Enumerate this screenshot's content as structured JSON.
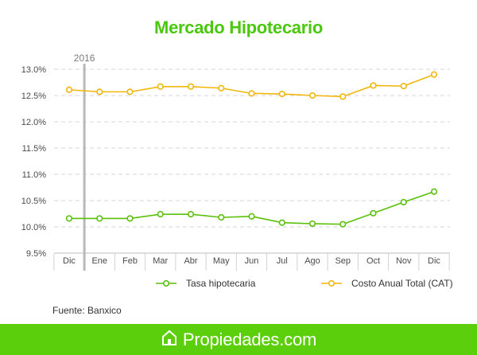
{
  "colors": {
    "title": "#49c80d",
    "series_tasa": "#5ac00a",
    "series_cat": "#f2b60d",
    "footer_bg": "#5ccf0c",
    "grid": "#d6d6d6",
    "year_marker": "#b9b9b9"
  },
  "chart_data": {
    "type": "line",
    "title": "Mercado Hipotecario",
    "categories": [
      "Dic",
      "Ene",
      "Feb",
      "Mar",
      "Abr",
      "May",
      "Jun",
      "Jul",
      "Ago",
      "Sep",
      "Oct",
      "Nov",
      "Dic"
    ],
    "y_tick_labels": [
      "9.5%",
      "10.0%",
      "10.5%",
      "11.0%",
      "11.5%",
      "12.0%",
      "12.5%",
      "13.0%"
    ],
    "ylim": [
      9.5,
      13.0
    ],
    "y_unit": "%",
    "grid": "horizontal dashed",
    "year_marker": {
      "label": "2016",
      "after_category_index": 0
    },
    "series": [
      {
        "name": "Tasa hipotecaria",
        "color": "#5ac00a",
        "values": [
          10.16,
          10.16,
          10.16,
          10.24,
          10.24,
          10.18,
          10.2,
          10.08,
          10.06,
          10.05,
          10.26,
          10.47,
          10.67
        ]
      },
      {
        "name": "Costo Anual Total (CAT)",
        "color": "#f2b60d",
        "values": [
          12.61,
          12.57,
          12.57,
          12.67,
          12.67,
          12.64,
          12.54,
          12.53,
          12.5,
          12.48,
          12.69,
          12.68,
          12.9
        ]
      }
    ],
    "legend_position": "bottom"
  },
  "source": "Fuente: Banxico",
  "footer": {
    "brand": "Propiedades.com",
    "logo_icon": "house-outline-icon"
  }
}
